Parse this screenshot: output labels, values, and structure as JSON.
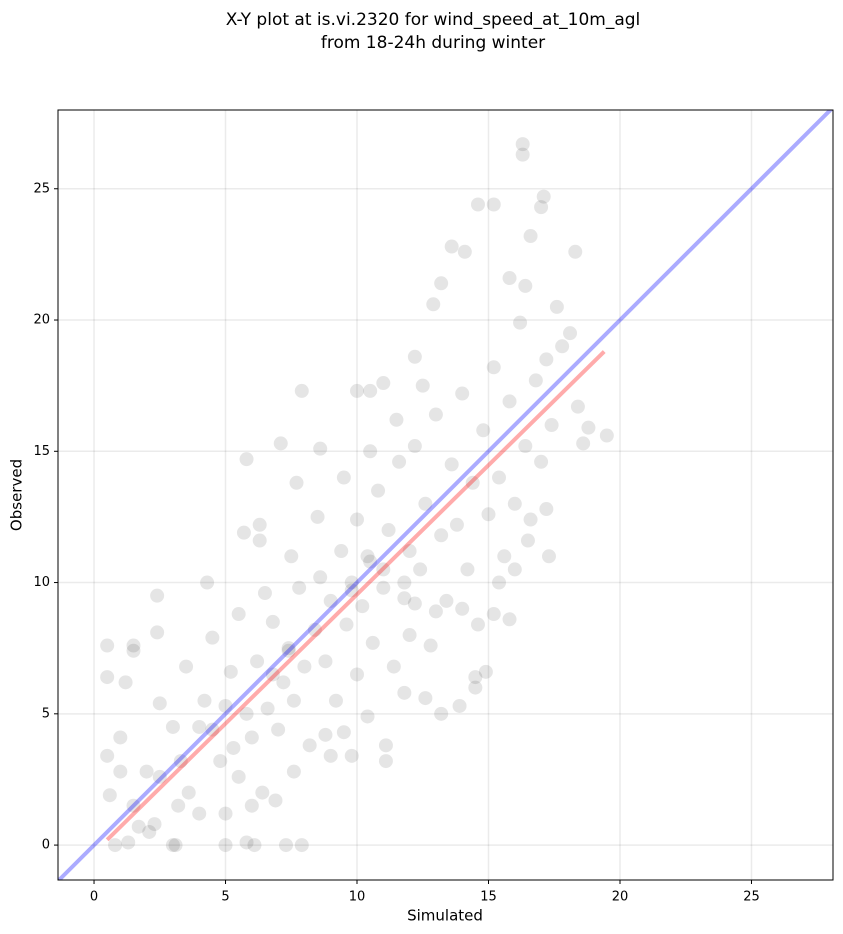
{
  "chart_data": {
    "type": "scatter",
    "title": [
      "X-Y plot at is.vi.2320 for wind_speed_at_10m_agl",
      "from 18-24h during winter"
    ],
    "x_label": "Simulated",
    "y_label": "Observed",
    "xlim": [
      -1.37,
      28.1
    ],
    "ylim": [
      -1.33,
      28.0
    ],
    "xticks": [
      0,
      5,
      10,
      15,
      20,
      25
    ],
    "yticks": [
      0,
      5,
      10,
      15,
      20,
      25
    ],
    "grid": true,
    "color": "#000000",
    "alpha": 0.1,
    "x": [
      0.5,
      0.5,
      0.5,
      0.6,
      0.8,
      1,
      1,
      1.2,
      1.5,
      1.5,
      2.4,
      2.4,
      3,
      4.3,
      5.8,
      5.7,
      6.3,
      6.3,
      7.1,
      7.7,
      7.9,
      8.6,
      10,
      10.5,
      11,
      12.2,
      12.9,
      13.2,
      13.6,
      14.1,
      14.6,
      15.2,
      16.3,
      16.3,
      17,
      17.1,
      16.6,
      18.3,
      15.8,
      16.4,
      17.6,
      18.1,
      19.5,
      18.6,
      18.8,
      18.4,
      17.3,
      17.2,
      15.8,
      15.2,
      14.5,
      14.5,
      14.9,
      13.2,
      13.9,
      11.1,
      11.1,
      9.8,
      9,
      7.9,
      7.3,
      6.1,
      5.8,
      5,
      3.1,
      2.1,
      1.3,
      1.7,
      1.5,
      2,
      2.5,
      3,
      3.3,
      3.6,
      4,
      4.2,
      4.5,
      4.8,
      5,
      5.2,
      5.3,
      5.5,
      5.8,
      6,
      6.2,
      6.4,
      6.6,
      6.8,
      7,
      7.2,
      7.4,
      7.6,
      7.8,
      8,
      8.2,
      8.4,
      8.6,
      8.8,
      9,
      9.2,
      9.4,
      9.6,
      9.8,
      10,
      10,
      10.2,
      10.4,
      10.6,
      10.8,
      11,
      11.2,
      11.4,
      11.6,
      11.8,
      12,
      12,
      12.2,
      12.4,
      12.6,
      12.8,
      13,
      13.2,
      13.4,
      13.6,
      13.8,
      14,
      14.2,
      14.4,
      14.6,
      14.8,
      15,
      15.2,
      15.4,
      15.6,
      15.8,
      16,
      16.2,
      16.4,
      16.6,
      16.8,
      17,
      17.2,
      17.4,
      17.8,
      12.5,
      11.5,
      10.5,
      9.5,
      8.5,
      7.5,
      6.5,
      5.5,
      4.5,
      3.5,
      2.5,
      11.8,
      12.6,
      10.4,
      9.5,
      8.8,
      7.6,
      6.9,
      6,
      5,
      4,
      3.2,
      2.3,
      13,
      14,
      15.4,
      16,
      16.5,
      11,
      11.8,
      12.2,
      10.5,
      9.8,
      7.4,
      6.8
    ],
    "values": [
      7.6,
      6.4,
      3.4,
      1.9,
      0,
      4.1,
      2.8,
      6.2,
      7.6,
      7.4,
      9.5,
      8.1,
      0,
      10,
      14.7,
      11.9,
      12.2,
      11.6,
      15.3,
      13.8,
      17.3,
      15.1,
      17.3,
      17.3,
      17.6,
      18.6,
      20.6,
      21.4,
      22.8,
      22.6,
      24.4,
      24.4,
      26.7,
      26.3,
      24.3,
      24.7,
      23.2,
      22.6,
      21.6,
      21.3,
      20.5,
      19.5,
      15.6,
      15.3,
      15.9,
      16.7,
      11,
      12.8,
      8.6,
      8.8,
      6,
      6.4,
      6.6,
      5,
      5.3,
      3.2,
      3.8,
      3.4,
      3.4,
      0,
      0,
      0,
      0.1,
      0,
      0,
      0.5,
      0.1,
      0.7,
      1.5,
      2.8,
      2.6,
      4.5,
      3.2,
      2,
      4.5,
      5.5,
      4.4,
      3.2,
      5.3,
      6.6,
      3.7,
      2.6,
      5,
      4.1,
      7,
      2,
      5.2,
      8.5,
      4.4,
      6.2,
      7.5,
      5.5,
      9.8,
      6.8,
      3.8,
      8.2,
      10.2,
      7,
      9.3,
      5.5,
      11.2,
      8.4,
      10,
      6.5,
      12.4,
      9.1,
      11,
      7.7,
      13.5,
      9.8,
      12,
      6.8,
      14.6,
      9.4,
      11.2,
      8,
      15.2,
      10.5,
      13,
      7.6,
      16.4,
      11.8,
      9.3,
      14.5,
      12.2,
      17.2,
      10.5,
      13.8,
      8.4,
      15.8,
      12.6,
      18.2,
      14,
      11,
      16.9,
      13,
      19.9,
      15.2,
      12.4,
      17.7,
      14.6,
      18.5,
      16,
      19,
      17.5,
      16.2,
      15,
      14,
      12.5,
      11,
      9.6,
      8.8,
      7.9,
      6.8,
      5.4,
      5.8,
      5.6,
      4.9,
      4.3,
      4.2,
      2.8,
      1.7,
      1.5,
      1.2,
      1.2,
      1.5,
      0.8,
      8.9,
      9,
      10,
      10.5,
      11.6,
      10.5,
      10,
      9.2,
      10.8,
      9.7,
      7.4,
      6.5
    ],
    "lines": [
      {
        "color": "#0000ff",
        "x": [
          -1.4,
          28.1
        ],
        "values": [
          -1.4,
          28.1
        ]
      },
      {
        "color": "#ff0000",
        "x": [
          0.5,
          19.4
        ],
        "values": [
          0.2,
          18.8
        ]
      }
    ]
  }
}
